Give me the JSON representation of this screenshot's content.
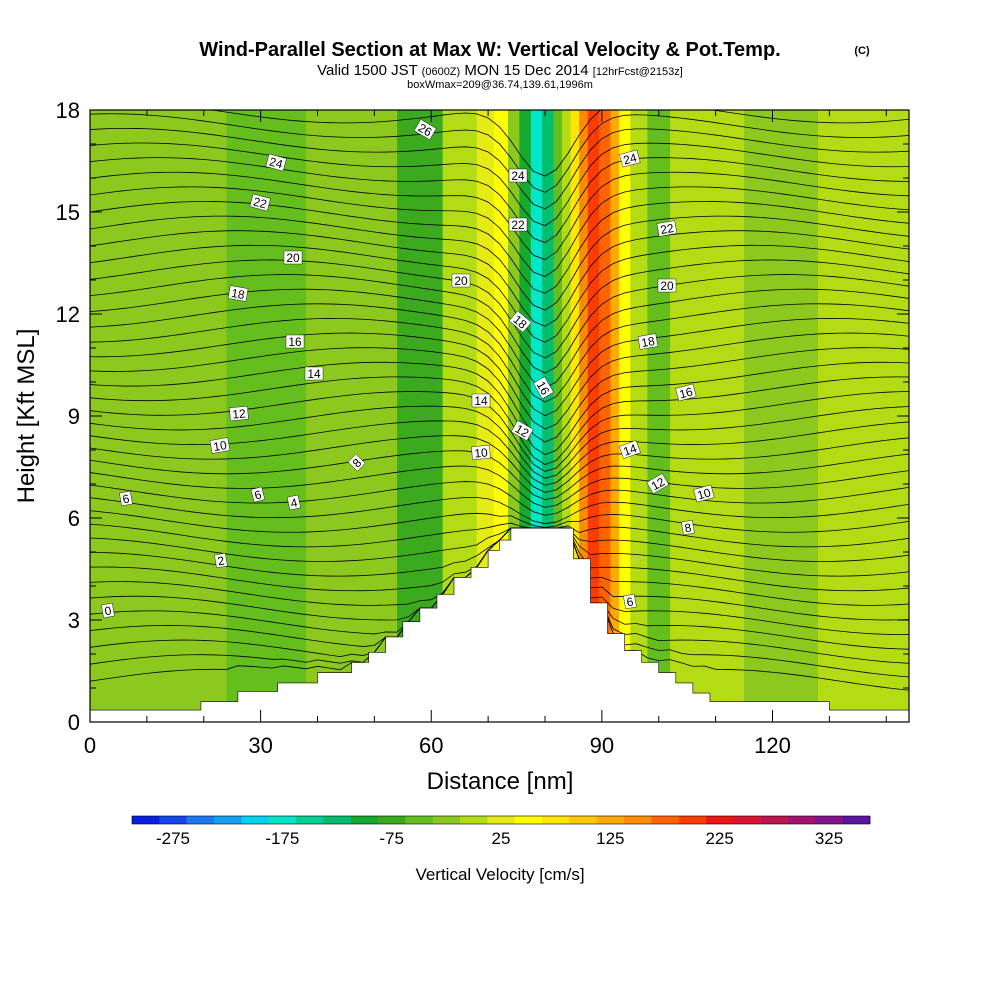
{
  "chart_data": {
    "type": "heatmap",
    "title": "Wind-Parallel Section at Max W: Vertical Velocity & Pot.Temp.",
    "title_mark": "(C)",
    "subtitle": {
      "main_a": "Valid 1500 JST",
      "main_small": "(0600Z)",
      "main_b": "MON 15 Dec 2014",
      "fcst": "[12hrFcst@2153z]",
      "box": "boxWmax=209@36.74,139.61,1996m"
    },
    "xlabel": "Distance [nm]",
    "ylabel": "Height [Kft MSL]",
    "xlim": [
      0,
      144
    ],
    "ylim": [
      0,
      18
    ],
    "x_ticks": [
      0,
      30,
      60,
      90,
      120
    ],
    "y_ticks": [
      0,
      3,
      6,
      9,
      12,
      15,
      18
    ],
    "colorbar": {
      "label": "Vertical Velocity [cm/s]",
      "tick_labels": [
        "-275",
        "-175",
        "-75",
        "25",
        "125",
        "225",
        "325"
      ],
      "levels": [
        -300,
        -275,
        -250,
        -225,
        -200,
        -175,
        -150,
        -125,
        -100,
        -75,
        -50,
        -25,
        0,
        25,
        50,
        75,
        100,
        125,
        150,
        175,
        200,
        225,
        250,
        275,
        300,
        325,
        350
      ],
      "colors": [
        "#0a1ee6",
        "#1446f0",
        "#1e78f0",
        "#14a0f0",
        "#00d2f0",
        "#00e6c8",
        "#00d296",
        "#00be6e",
        "#14aa2d",
        "#3caa1e",
        "#64be1e",
        "#8cc81e",
        "#b4dc14",
        "#e6eb14",
        "#ffff00",
        "#ffe600",
        "#ffc800",
        "#ffaa00",
        "#ff8c00",
        "#ff6400",
        "#ff3c00",
        "#f01414",
        "#dc1432",
        "#be1450",
        "#a0146e",
        "#82148c",
        "#5a14a0"
      ]
    },
    "theta_contour_labels": [
      "0",
      "2",
      "4",
      "6",
      "6",
      "6",
      "8",
      "8",
      "10",
      "10",
      "10",
      "12",
      "12",
      "12",
      "14",
      "14",
      "14",
      "16",
      "16",
      "16",
      "18",
      "18",
      "18",
      "20",
      "20",
      "20",
      "22",
      "22",
      "22",
      "24",
      "24",
      "24",
      "26"
    ],
    "terrain_profile_kft": [
      [
        0,
        0.35
      ],
      [
        19.5,
        0.35
      ],
      [
        19.5,
        0.6
      ],
      [
        26,
        0.6
      ],
      [
        26,
        0.9
      ],
      [
        33,
        0.9
      ],
      [
        33,
        1.15
      ],
      [
        40,
        1.15
      ],
      [
        40,
        1.45
      ],
      [
        46,
        1.45
      ],
      [
        46,
        1.75
      ],
      [
        49,
        1.75
      ],
      [
        49,
        2.05
      ],
      [
        52,
        2.05
      ],
      [
        52,
        2.5
      ],
      [
        55,
        2.5
      ],
      [
        55,
        2.95
      ],
      [
        58,
        2.95
      ],
      [
        58,
        3.35
      ],
      [
        61,
        3.35
      ],
      [
        61,
        3.75
      ],
      [
        64,
        3.75
      ],
      [
        64,
        4.25
      ],
      [
        67,
        4.25
      ],
      [
        67,
        4.55
      ],
      [
        70,
        4.55
      ],
      [
        70,
        5.05
      ],
      [
        72,
        5.05
      ],
      [
        72,
        5.35
      ],
      [
        74,
        5.35
      ],
      [
        74,
        5.7
      ],
      [
        85,
        5.7
      ],
      [
        85,
        4.8
      ],
      [
        88,
        4.8
      ],
      [
        88,
        3.5
      ],
      [
        91,
        3.5
      ],
      [
        91,
        2.6
      ],
      [
        94,
        2.6
      ],
      [
        94,
        2.1
      ],
      [
        97,
        2.1
      ],
      [
        97,
        1.75
      ],
      [
        100,
        1.75
      ],
      [
        100,
        1.45
      ],
      [
        103,
        1.45
      ],
      [
        103,
        1.15
      ],
      [
        106,
        1.15
      ],
      [
        106,
        0.85
      ],
      [
        109,
        0.85
      ],
      [
        109,
        0.6
      ],
      [
        130,
        0.6
      ],
      [
        130,
        0.35
      ],
      [
        144,
        0.35
      ]
    ],
    "vertical_velocity_bands": [
      {
        "x": 0,
        "w": 24,
        "value": -25
      },
      {
        "x": 24,
        "w": 14,
        "value": -50
      },
      {
        "x": 38,
        "w": 16,
        "value": -25
      },
      {
        "x": 54,
        "w": 8,
        "value": -75
      },
      {
        "x": 62,
        "w": 6,
        "value": 0
      },
      {
        "x": 68,
        "w": 3,
        "value": 25
      },
      {
        "x": 71,
        "w": 2.5,
        "value": 50
      },
      {
        "x": 73.5,
        "w": 2,
        "value": -25
      },
      {
        "x": 75.5,
        "w": 2,
        "value": -100
      },
      {
        "x": 77.5,
        "w": 2,
        "value": -175
      },
      {
        "x": 79.5,
        "w": 2,
        "value": -125
      },
      {
        "x": 81.5,
        "w": 1.5,
        "value": -50
      },
      {
        "x": 83,
        "w": 1.5,
        "value": 0
      },
      {
        "x": 84.5,
        "w": 1.5,
        "value": 75
      },
      {
        "x": 86,
        "w": 1.5,
        "value": 150
      },
      {
        "x": 87.5,
        "w": 2,
        "value": 200
      },
      {
        "x": 89.5,
        "w": 2,
        "value": 175
      },
      {
        "x": 91.5,
        "w": 1.5,
        "value": 125
      },
      {
        "x": 93,
        "w": 2,
        "value": 50
      },
      {
        "x": 95,
        "w": 3,
        "value": 0
      },
      {
        "x": 98,
        "w": 4,
        "value": -50
      },
      {
        "x": 102,
        "w": 13,
        "value": 0
      },
      {
        "x": 115,
        "w": 13,
        "value": -25
      },
      {
        "x": 128,
        "w": 16,
        "value": 0
      }
    ]
  }
}
